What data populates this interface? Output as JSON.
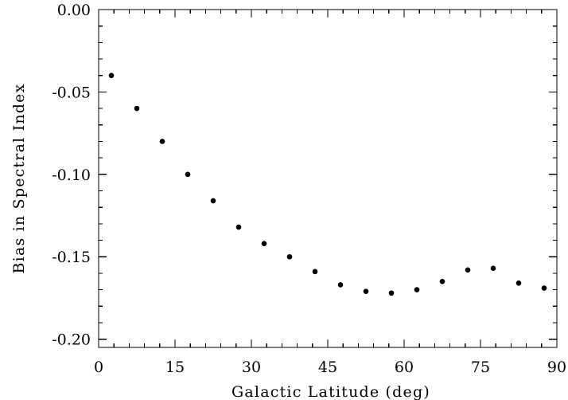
{
  "chart_data": {
    "type": "scatter",
    "title": "",
    "xlabel": "Galactic Latitude (deg)",
    "ylabel": "Bias in Spectral Index",
    "xlim": [
      0,
      90
    ],
    "ylim": [
      -0.205,
      0.0
    ],
    "x_ticks": [
      0,
      15,
      30,
      45,
      60,
      75,
      90
    ],
    "x_tick_labels": [
      "0",
      "15",
      "30",
      "45",
      "60",
      "75",
      "90"
    ],
    "y_ticks": [
      0.0,
      -0.05,
      -0.1,
      -0.15,
      -0.2
    ],
    "y_tick_labels": [
      "0.00",
      "-0.05",
      "-0.10",
      "-0.15",
      "-0.20"
    ],
    "grid": false,
    "series": [
      {
        "x": [
          2.5,
          7.5,
          12.5,
          17.5,
          22.5,
          27.5,
          32.5,
          37.5,
          42.5,
          47.5,
          52.5,
          57.5,
          62.5,
          67.5,
          72.5,
          77.5,
          82.5,
          87.5
        ],
        "values": [
          -0.04,
          -0.06,
          -0.08,
          -0.1,
          -0.116,
          -0.132,
          -0.142,
          -0.15,
          -0.159,
          -0.167,
          -0.171,
          -0.172,
          -0.17,
          -0.165,
          -0.158,
          -0.157,
          -0.166,
          -0.169
        ]
      }
    ]
  }
}
